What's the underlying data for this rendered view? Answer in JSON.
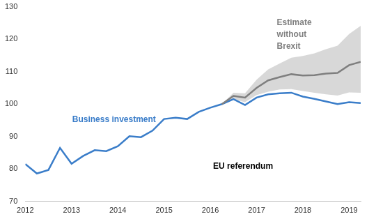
{
  "chart_data": {
    "type": "line",
    "x": [
      2012,
      2012.25,
      2012.5,
      2012.75,
      2013,
      2013.25,
      2013.5,
      2013.75,
      2014,
      2014.25,
      2014.5,
      2014.75,
      2015,
      2015.25,
      2015.5,
      2015.75,
      2016,
      2016.25,
      2016.5,
      2016.75,
      2017,
      2017.25,
      2017.5,
      2017.75,
      2018,
      2018.25,
      2018.5,
      2018.75,
      2019,
      2019.25
    ],
    "series": [
      {
        "name": "Business investment",
        "color": "#3a7dc9",
        "values": [
          81.5,
          78.6,
          79.7,
          86.5,
          81.6,
          84,
          85.8,
          85.5,
          87,
          90.1,
          89.8,
          91.8,
          95.4,
          95.8,
          95.4,
          97.6,
          98.9,
          100,
          101.5,
          99.7,
          102,
          103,
          103.3,
          103.5,
          102.3,
          101.6,
          100.8,
          100,
          100.6,
          100.3
        ]
      },
      {
        "name": "Estimate without Brexit",
        "color": "#7f7f7f",
        "values": [
          null,
          null,
          null,
          null,
          null,
          null,
          null,
          null,
          null,
          null,
          null,
          null,
          null,
          null,
          null,
          null,
          null,
          100,
          102.5,
          102,
          105,
          107.3,
          108.3,
          109.2,
          108.8,
          108.9,
          109.4,
          109.6,
          112,
          113
        ],
        "lower": [
          null,
          null,
          null,
          null,
          null,
          null,
          null,
          null,
          null,
          null,
          null,
          null,
          null,
          null,
          null,
          null,
          null,
          100,
          101.5,
          100.6,
          102.8,
          103.8,
          104.5,
          104.6,
          104,
          103.5,
          103,
          102.6,
          103.6,
          103.5
        ],
        "upper": [
          null,
          null,
          null,
          null,
          null,
          null,
          null,
          null,
          null,
          null,
          null,
          null,
          null,
          null,
          null,
          null,
          null,
          100,
          103.5,
          103.3,
          107.5,
          110.7,
          112.5,
          114.3,
          114.8,
          115.6,
          116.9,
          118,
          121.6,
          124.1
        ]
      }
    ],
    "annotations": [
      "EU referendum"
    ],
    "xlim": [
      2012,
      2019.25
    ],
    "xticks": [
      2012,
      2013,
      2014,
      2015,
      2016,
      2017,
      2018,
      2019
    ],
    "ylim": [
      70,
      130
    ],
    "yticks": [
      70,
      80,
      90,
      100,
      110,
      120,
      130
    ],
    "grid": false
  }
}
